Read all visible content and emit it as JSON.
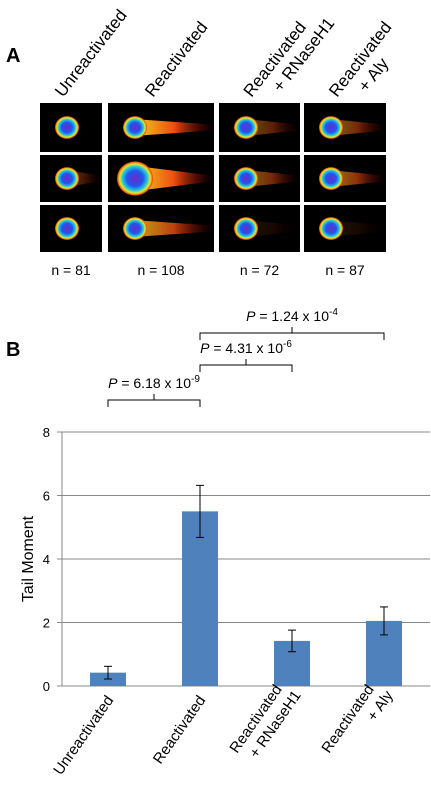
{
  "panel_a": {
    "label": "A",
    "columns": [
      [
        "Unreactivated"
      ],
      [
        "Reactivated"
      ],
      [
        "Reactivated",
        "+ RNaseH1"
      ],
      [
        "Reactivated",
        "+ Aly"
      ]
    ],
    "counts": [
      "n = 81",
      "n = 108",
      "n = 72",
      "n = 87"
    ]
  },
  "chart_data": {
    "type": "bar",
    "panel_label": "B",
    "ylabel": "Tail Moment",
    "categories": [
      [
        "Unreactivated"
      ],
      [
        "Reactivated"
      ],
      [
        "Reactivated",
        "+ RNaseH1"
      ],
      [
        "Reactivated",
        "+ Aly"
      ]
    ],
    "values": [
      0.42,
      5.5,
      1.42,
      2.05
    ],
    "errors": [
      0.2,
      0.82,
      0.34,
      0.44
    ],
    "color": "#4f81bd",
    "ylim": [
      0,
      8
    ],
    "yticks": [
      0,
      2,
      4,
      6,
      8
    ],
    "grid": true,
    "significance": [
      {
        "symbol": "P",
        "text": " = 1.24 x 10",
        "exponent": "-4"
      },
      {
        "symbol": "P",
        "text": " = 4.31 x 10",
        "exponent": "-6"
      },
      {
        "symbol": "P",
        "text": " = 6.18 x 10",
        "exponent": "-9"
      }
    ]
  }
}
